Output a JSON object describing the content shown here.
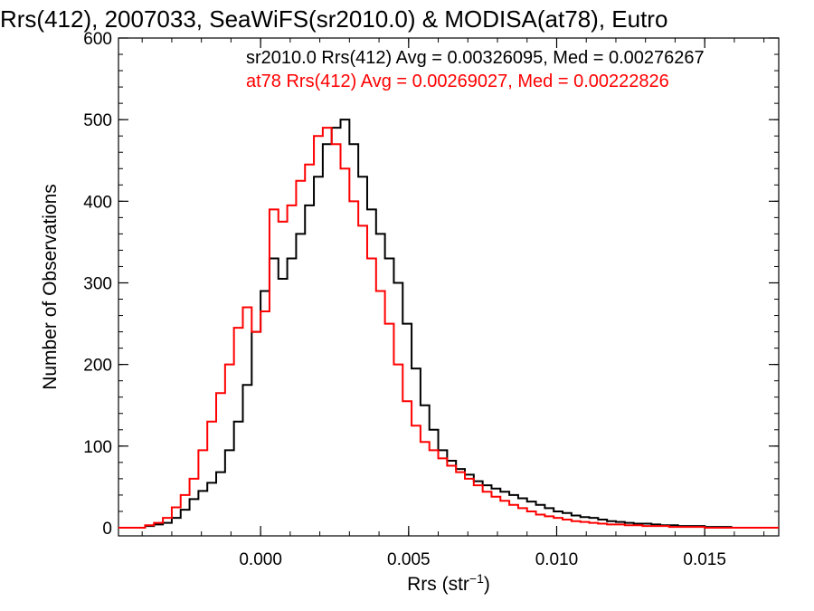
{
  "chart_data": {
    "type": "line",
    "title": "Rrs(412), 2007033, SeaWiFS(sr2010.0) & MODISA(at78), Eutro",
    "xlabel_main": "Rrs (str",
    "xlabel_sup": "−1",
    "xlabel_close": ")",
    "ylabel": "Number of Observations",
    "xlim": [
      -0.0048,
      0.0175
    ],
    "ylim": [
      -10,
      600
    ],
    "x_ticks": [
      {
        "value": 0.0,
        "label": "0.000"
      },
      {
        "value": 0.005,
        "label": "0.005"
      },
      {
        "value": 0.01,
        "label": "0.010"
      },
      {
        "value": 0.015,
        "label": "0.015"
      }
    ],
    "y_ticks": [
      {
        "value": 0,
        "label": "0"
      },
      {
        "value": 100,
        "label": "100"
      },
      {
        "value": 200,
        "label": "200"
      },
      {
        "value": 300,
        "label": "300"
      },
      {
        "value": 400,
        "label": "400"
      },
      {
        "value": 500,
        "label": "500"
      },
      {
        "value": 600,
        "label": "600"
      }
    ],
    "grid": false,
    "legend_placement": "top",
    "series": [
      {
        "name": "sr2010.0",
        "legend": "sr2010.0 Rrs(412) Avg = 0.00326095, Med = 0.00276267",
        "color": "#000000",
        "x": [
          -0.0048,
          -0.0045,
          -0.0042,
          -0.0039,
          -0.0036,
          -0.0033,
          -0.003,
          -0.0027,
          -0.0024,
          -0.0021,
          -0.0018,
          -0.0015,
          -0.0012,
          -0.0009,
          -0.0006,
          -0.0003,
          0.0,
          0.0003,
          0.0006,
          0.0009,
          0.0012,
          0.0015,
          0.0018,
          0.0021,
          0.0024,
          0.0027,
          0.003,
          0.0033,
          0.0036,
          0.0039,
          0.0042,
          0.0045,
          0.0048,
          0.0051,
          0.0054,
          0.0057,
          0.006,
          0.0063,
          0.0066,
          0.0069,
          0.0072,
          0.0075,
          0.0078,
          0.0081,
          0.0084,
          0.0087,
          0.009,
          0.0093,
          0.0096,
          0.0099,
          0.0102,
          0.0105,
          0.0108,
          0.0111,
          0.0114,
          0.0117,
          0.012,
          0.0123,
          0.0126,
          0.0129,
          0.0132,
          0.0135,
          0.0138,
          0.0141,
          0.0144,
          0.0147,
          0.015,
          0.0153,
          0.0156,
          0.0159,
          0.0162,
          0.0165,
          0.0168,
          0.0171,
          0.0174
        ],
        "values": [
          0,
          0,
          0,
          2,
          4,
          6,
          12,
          22,
          35,
          45,
          55,
          68,
          95,
          130,
          175,
          240,
          290,
          330,
          305,
          330,
          360,
          395,
          430,
          470,
          490,
          500,
          470,
          430,
          390,
          360,
          330,
          300,
          250,
          195,
          150,
          120,
          95,
          82,
          72,
          65,
          57,
          52,
          48,
          44,
          40,
          36,
          32,
          28,
          24,
          20,
          18,
          15,
          13,
          12,
          10,
          8,
          7,
          6,
          5,
          5,
          4,
          3,
          3,
          2,
          2,
          2,
          1,
          1,
          1,
          0,
          0,
          0,
          0,
          0,
          0
        ]
      },
      {
        "name": "at78",
        "legend": "at78 Rrs(412) Avg = 0.00269027, Med = 0.00222826",
        "color": "#ff0000",
        "x": [
          -0.0048,
          -0.0045,
          -0.0042,
          -0.0039,
          -0.0036,
          -0.0033,
          -0.003,
          -0.0027,
          -0.0024,
          -0.0021,
          -0.0018,
          -0.0015,
          -0.0012,
          -0.0009,
          -0.0006,
          -0.0003,
          0.0,
          0.0003,
          0.0006,
          0.0009,
          0.0012,
          0.0015,
          0.0018,
          0.0021,
          0.0024,
          0.0027,
          0.003,
          0.0033,
          0.0036,
          0.0039,
          0.0042,
          0.0045,
          0.0048,
          0.0051,
          0.0054,
          0.0057,
          0.006,
          0.0063,
          0.0066,
          0.0069,
          0.0072,
          0.0075,
          0.0078,
          0.0081,
          0.0084,
          0.0087,
          0.009,
          0.0093,
          0.0096,
          0.0099,
          0.0102,
          0.0105,
          0.0108,
          0.0111,
          0.0114,
          0.0117,
          0.012,
          0.0123,
          0.0126,
          0.0129,
          0.0132,
          0.0135,
          0.0138,
          0.0141,
          0.0144,
          0.0147,
          0.015,
          0.0153,
          0.0156,
          0.0159,
          0.0162,
          0.0165,
          0.0168,
          0.0171,
          0.0174
        ],
        "values": [
          0,
          0,
          0,
          3,
          6,
          12,
          25,
          40,
          60,
          95,
          130,
          165,
          200,
          245,
          270,
          240,
          265,
          390,
          375,
          395,
          425,
          445,
          480,
          490,
          470,
          440,
          400,
          370,
          330,
          290,
          250,
          200,
          155,
          125,
          105,
          95,
          85,
          76,
          68,
          60,
          52,
          44,
          38,
          33,
          28,
          24,
          20,
          16,
          14,
          12,
          10,
          8,
          7,
          6,
          5,
          4,
          4,
          3,
          3,
          2,
          2,
          2,
          1,
          1,
          1,
          1,
          0,
          0,
          0,
          0,
          0,
          0,
          0,
          0,
          0
        ]
      }
    ]
  }
}
